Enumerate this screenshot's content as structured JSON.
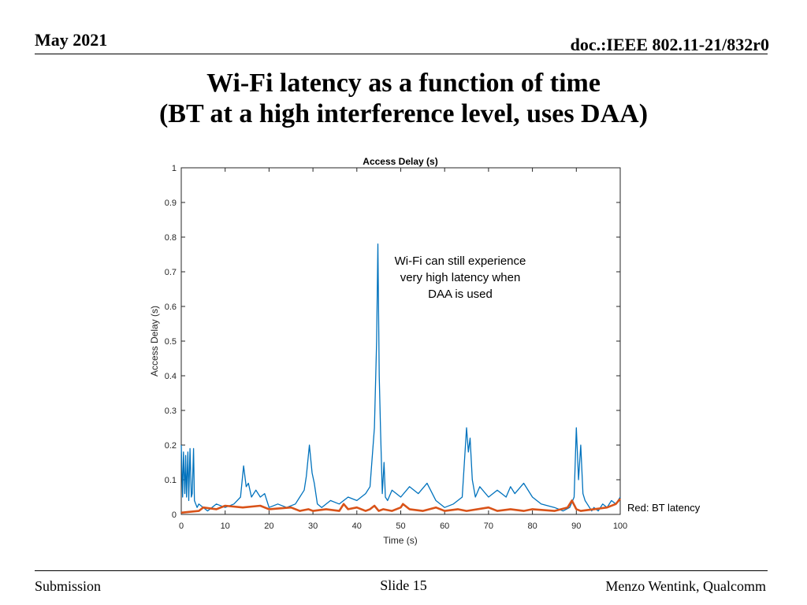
{
  "slide": {
    "date": "May 2021",
    "doc_id": "doc.:IEEE 802.11-21/832r0",
    "title_line1": "Wi-Fi latency as a function of time",
    "title_line2": "(BT at a high interference level, uses DAA)",
    "footer_left": "Submission",
    "footer_center": "Slide 15",
    "footer_right": "Menzo Wentink, Qualcomm"
  },
  "chart_data": {
    "type": "line",
    "title": "Access Delay (s)",
    "xlabel": "Time (s)",
    "ylabel": "Access Delay (s)",
    "xlim": [
      0,
      100
    ],
    "ylim": [
      0,
      1
    ],
    "xticks": [
      0,
      10,
      20,
      30,
      40,
      50,
      60,
      70,
      80,
      90,
      100
    ],
    "yticks": [
      0,
      0.1,
      0.2,
      0.3,
      0.4,
      0.5,
      0.6,
      0.7,
      0.8,
      0.9,
      1
    ],
    "xtick_labels": [
      "0",
      "10",
      "20",
      "30",
      "40",
      "50",
      "60",
      "70",
      "80",
      "90",
      "100"
    ],
    "ytick_labels": [
      "0",
      "0.1",
      "0.2",
      "0.3",
      "0.4",
      "0.5",
      "0.6",
      "0.7",
      "0.8",
      "0.9",
      "1"
    ],
    "grid": false,
    "series": [
      {
        "color": "#0072BD",
        "x": [
          0,
          0.3,
          0.5,
          0.8,
          1.0,
          1.2,
          1.5,
          1.7,
          2.0,
          2.3,
          2.5,
          2.8,
          3.0,
          3.3,
          3.6,
          4,
          6,
          8,
          10,
          12,
          13.5,
          14.2,
          14.8,
          15.3,
          16,
          17,
          18,
          19,
          20,
          22,
          24,
          26,
          28,
          28.5,
          29.2,
          29.8,
          30.3,
          31,
          32,
          34,
          36,
          38,
          40,
          42,
          43,
          44,
          44.5,
          44.8,
          45.1,
          45.4,
          45.8,
          46.2,
          46.5,
          47,
          48,
          50,
          52,
          54,
          56,
          58,
          60,
          62,
          64,
          65,
          65.4,
          65.8,
          66.3,
          67,
          68,
          70,
          72,
          74,
          75,
          76,
          78,
          80,
          82,
          85,
          87,
          88.5,
          89.5,
          90,
          90.5,
          91,
          91.5,
          92,
          92.5,
          93,
          93.5,
          94,
          95,
          96,
          97,
          98,
          99,
          100
        ],
        "y": [
          0.2,
          0.05,
          0.18,
          0.06,
          0.17,
          0.05,
          0.18,
          0.04,
          0.19,
          0.05,
          0.06,
          0.19,
          0.04,
          0.03,
          0.02,
          0.03,
          0.01,
          0.03,
          0.02,
          0.03,
          0.05,
          0.14,
          0.08,
          0.09,
          0.05,
          0.07,
          0.05,
          0.06,
          0.02,
          0.03,
          0.02,
          0.03,
          0.07,
          0.11,
          0.2,
          0.12,
          0.09,
          0.03,
          0.02,
          0.04,
          0.03,
          0.05,
          0.04,
          0.06,
          0.08,
          0.25,
          0.5,
          0.78,
          0.4,
          0.24,
          0.06,
          0.15,
          0.05,
          0.04,
          0.07,
          0.05,
          0.08,
          0.06,
          0.09,
          0.04,
          0.02,
          0.03,
          0.05,
          0.25,
          0.18,
          0.22,
          0.1,
          0.05,
          0.08,
          0.05,
          0.07,
          0.05,
          0.08,
          0.06,
          0.09,
          0.05,
          0.03,
          0.02,
          0.01,
          0.02,
          0.05,
          0.25,
          0.1,
          0.2,
          0.06,
          0.04,
          0.03,
          0.02,
          0.01,
          0.02,
          0.01,
          0.03,
          0.02,
          0.04,
          0.03,
          0.05
        ]
      },
      {
        "color": "#D95319",
        "x": [
          0,
          4,
          5,
          8,
          10,
          14,
          18,
          20,
          25,
          27,
          29,
          30,
          33,
          36,
          37,
          38,
          40,
          42,
          43,
          44,
          45,
          46,
          48,
          50,
          50.5,
          51,
          52,
          55,
          58,
          60,
          63,
          65,
          70,
          72,
          75,
          78,
          80,
          85,
          88,
          89,
          90,
          91,
          94,
          97,
          99,
          100
        ],
        "y": [
          0.005,
          0.01,
          0.02,
          0.015,
          0.025,
          0.02,
          0.025,
          0.015,
          0.02,
          0.01,
          0.015,
          0.01,
          0.015,
          0.01,
          0.03,
          0.015,
          0.02,
          0.01,
          0.015,
          0.025,
          0.01,
          0.015,
          0.01,
          0.02,
          0.03,
          0.025,
          0.015,
          0.01,
          0.02,
          0.01,
          0.015,
          0.01,
          0.02,
          0.01,
          0.015,
          0.01,
          0.015,
          0.01,
          0.02,
          0.04,
          0.015,
          0.01,
          0.015,
          0.02,
          0.03,
          0.045
        ]
      }
    ],
    "annotations": {
      "note_line1": "Wi-Fi can still experience",
      "note_line2": "very high latency when",
      "note_line3": "DAA is used",
      "legend_note": "Red: BT latency"
    }
  }
}
